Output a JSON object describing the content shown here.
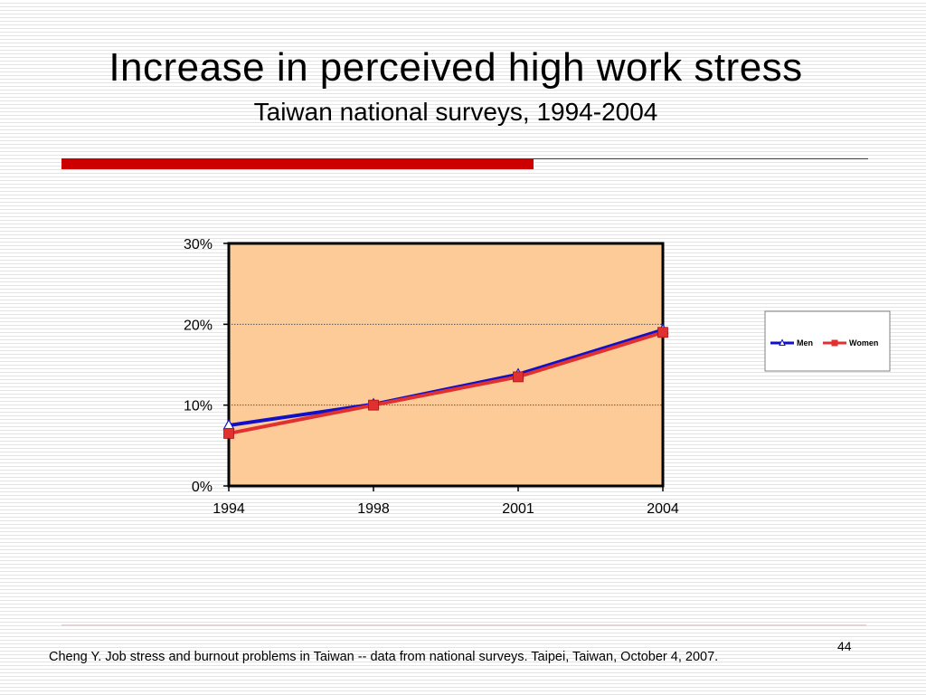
{
  "slide": {
    "title": "Increase in perceived high work stress",
    "subtitle": "Taiwan national surveys, 1994-2004",
    "footer": "Cheng Y. Job stress and burnout problems in Taiwan -- data from national surveys. Taipei, Taiwan, October 4, 2007.",
    "page_number": "44"
  },
  "chart_data": {
    "type": "line",
    "title": "",
    "xlabel": "",
    "ylabel": "",
    "categories": [
      "1994",
      "1998",
      "2001",
      "2004"
    ],
    "ylim": [
      0,
      30
    ],
    "y_ticks": [
      "0%",
      "10%",
      "20%",
      "30%"
    ],
    "grid": true,
    "plot_background": "#fccb98",
    "legend_position": "right",
    "series": [
      {
        "name": "Men",
        "values": [
          7.5,
          10.1,
          13.8,
          19.3
        ],
        "color": "#1010c8",
        "marker": "triangle"
      },
      {
        "name": "Women",
        "values": [
          6.5,
          10.0,
          13.5,
          19.0
        ],
        "color": "#e03030",
        "marker": "square"
      }
    ]
  }
}
